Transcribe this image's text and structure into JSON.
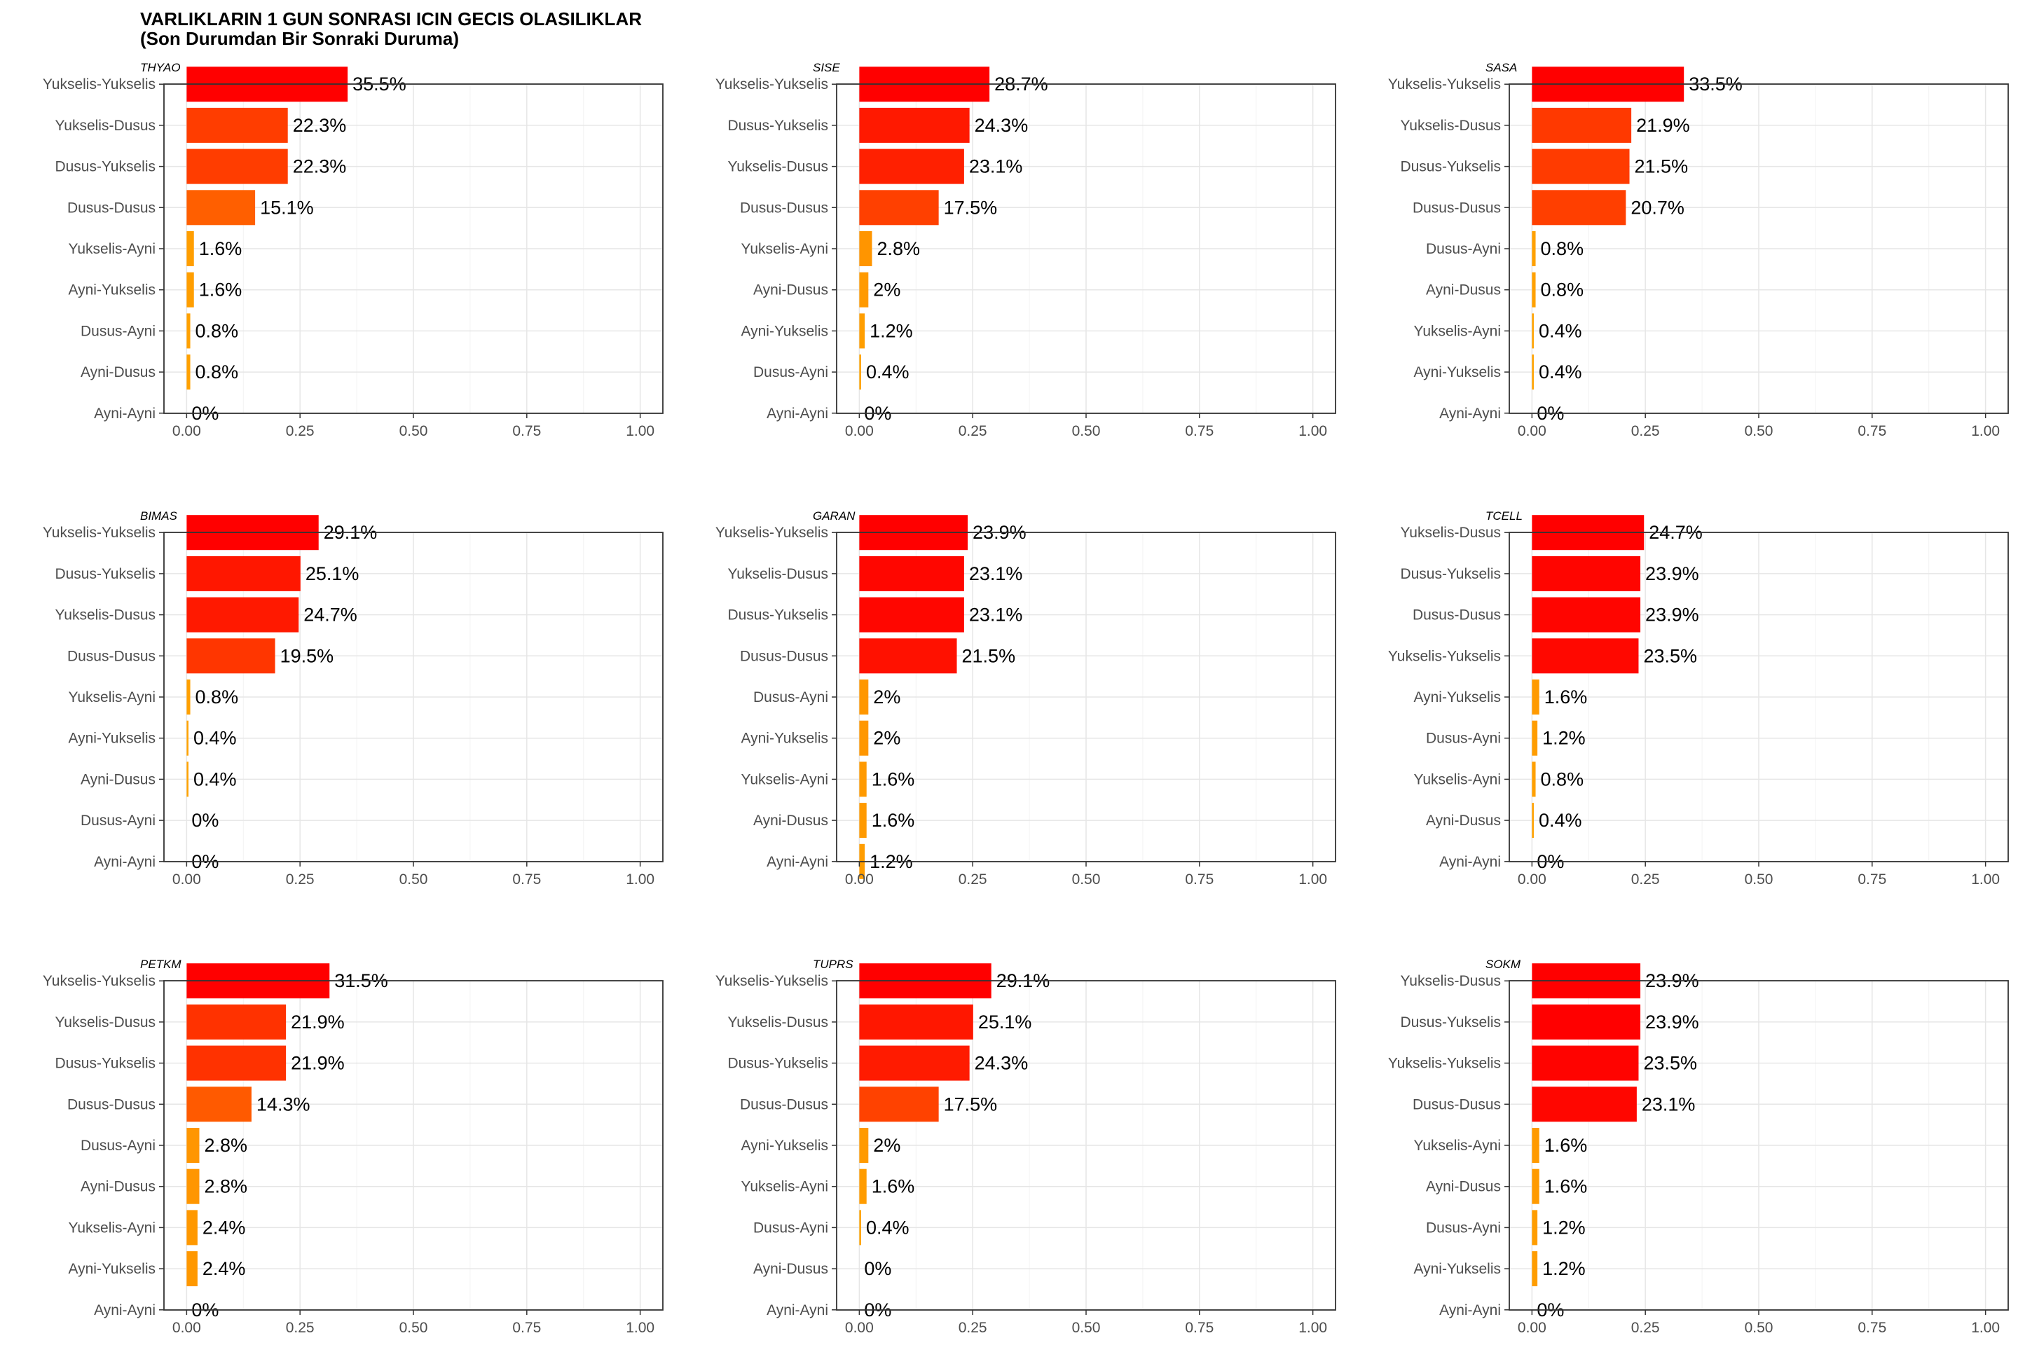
{
  "title": "VARLIKLARIN 1 GUN SONRASI ICIN GECIS OLASILIKLAR",
  "subtitle": "(Son Durumdan Bir Sonraki Duruma)",
  "chart_data": [
    {
      "type": "bar",
      "orientation": "horizontal",
      "title": "THYAO",
      "categories": [
        "Yukselis-Yukselis",
        "Yukselis-Dusus",
        "Dusus-Yukselis",
        "Dusus-Dusus",
        "Yukselis-Ayni",
        "Ayni-Yukselis",
        "Dusus-Ayni",
        "Ayni-Dusus",
        "Ayni-Ayni"
      ],
      "values": [
        0.355,
        0.223,
        0.223,
        0.151,
        0.016,
        0.016,
        0.008,
        0.008,
        0.0
      ],
      "labels": [
        "35.5%",
        "22.3%",
        "22.3%",
        "15.1%",
        "1.6%",
        "1.6%",
        "0.8%",
        "0.8%",
        "0%"
      ],
      "xlim": [
        0,
        1
      ],
      "x_ticks": [
        "0.00",
        "0.25",
        "0.50",
        "0.75",
        "1.00"
      ],
      "grid": true,
      "color_scale": [
        "#FFA500",
        "#FF0000"
      ]
    },
    {
      "type": "bar",
      "orientation": "horizontal",
      "title": "SISE",
      "categories": [
        "Yukselis-Yukselis",
        "Dusus-Yukselis",
        "Yukselis-Dusus",
        "Dusus-Dusus",
        "Yukselis-Ayni",
        "Ayni-Dusus",
        "Ayni-Yukselis",
        "Dusus-Ayni",
        "Ayni-Ayni"
      ],
      "values": [
        0.287,
        0.243,
        0.231,
        0.175,
        0.028,
        0.02,
        0.012,
        0.004,
        0.0
      ],
      "labels": [
        "28.7%",
        "24.3%",
        "23.1%",
        "17.5%",
        "2.8%",
        "2%",
        "1.2%",
        "0.4%",
        "0%"
      ],
      "xlim": [
        0,
        1
      ],
      "x_ticks": [
        "0.00",
        "0.25",
        "0.50",
        "0.75",
        "1.00"
      ],
      "grid": true,
      "color_scale": [
        "#FFA500",
        "#FF0000"
      ]
    },
    {
      "type": "bar",
      "orientation": "horizontal",
      "title": "SASA",
      "categories": [
        "Yukselis-Yukselis",
        "Yukselis-Dusus",
        "Dusus-Yukselis",
        "Dusus-Dusus",
        "Dusus-Ayni",
        "Ayni-Dusus",
        "Yukselis-Ayni",
        "Ayni-Yukselis",
        "Ayni-Ayni"
      ],
      "values": [
        0.335,
        0.219,
        0.215,
        0.207,
        0.008,
        0.008,
        0.004,
        0.004,
        0.0
      ],
      "labels": [
        "33.5%",
        "21.9%",
        "21.5%",
        "20.7%",
        "0.8%",
        "0.8%",
        "0.4%",
        "0.4%",
        "0%"
      ],
      "xlim": [
        0,
        1
      ],
      "x_ticks": [
        "0.00",
        "0.25",
        "0.50",
        "0.75",
        "1.00"
      ],
      "grid": true,
      "color_scale": [
        "#FFA500",
        "#FF0000"
      ]
    },
    {
      "type": "bar",
      "orientation": "horizontal",
      "title": "BIMAS",
      "categories": [
        "Yukselis-Yukselis",
        "Dusus-Yukselis",
        "Yukselis-Dusus",
        "Dusus-Dusus",
        "Yukselis-Ayni",
        "Ayni-Yukselis",
        "Ayni-Dusus",
        "Dusus-Ayni",
        "Ayni-Ayni"
      ],
      "values": [
        0.291,
        0.251,
        0.247,
        0.195,
        0.008,
        0.004,
        0.004,
        0.0,
        0.0
      ],
      "labels": [
        "29.1%",
        "25.1%",
        "24.7%",
        "19.5%",
        "0.8%",
        "0.4%",
        "0.4%",
        "0%",
        "0%"
      ],
      "xlim": [
        0,
        1
      ],
      "x_ticks": [
        "0.00",
        "0.25",
        "0.50",
        "0.75",
        "1.00"
      ],
      "grid": true,
      "color_scale": [
        "#FFA500",
        "#FF0000"
      ]
    },
    {
      "type": "bar",
      "orientation": "horizontal",
      "title": "GARAN",
      "categories": [
        "Yukselis-Yukselis",
        "Yukselis-Dusus",
        "Dusus-Yukselis",
        "Dusus-Dusus",
        "Dusus-Ayni",
        "Ayni-Yukselis",
        "Yukselis-Ayni",
        "Ayni-Dusus",
        "Ayni-Ayni"
      ],
      "values": [
        0.239,
        0.231,
        0.231,
        0.215,
        0.02,
        0.02,
        0.016,
        0.016,
        0.012
      ],
      "labels": [
        "23.9%",
        "23.1%",
        "23.1%",
        "21.5%",
        "2%",
        "2%",
        "1.6%",
        "1.6%",
        "1.2%"
      ],
      "xlim": [
        0,
        1
      ],
      "x_ticks": [
        "0.00",
        "0.25",
        "0.50",
        "0.75",
        "1.00"
      ],
      "grid": true,
      "color_scale": [
        "#FFA500",
        "#FF0000"
      ]
    },
    {
      "type": "bar",
      "orientation": "horizontal",
      "title": "TCELL",
      "categories": [
        "Yukselis-Dusus",
        "Dusus-Yukselis",
        "Dusus-Dusus",
        "Yukselis-Yukselis",
        "Ayni-Yukselis",
        "Dusus-Ayni",
        "Yukselis-Ayni",
        "Ayni-Dusus",
        "Ayni-Ayni"
      ],
      "values": [
        0.247,
        0.239,
        0.239,
        0.235,
        0.016,
        0.012,
        0.008,
        0.004,
        0.0
      ],
      "labels": [
        "24.7%",
        "23.9%",
        "23.9%",
        "23.5%",
        "1.6%",
        "1.2%",
        "0.8%",
        "0.4%",
        "0%"
      ],
      "xlim": [
        0,
        1
      ],
      "x_ticks": [
        "0.00",
        "0.25",
        "0.50",
        "0.75",
        "1.00"
      ],
      "grid": true,
      "color_scale": [
        "#FFA500",
        "#FF0000"
      ]
    },
    {
      "type": "bar",
      "orientation": "horizontal",
      "title": "PETKM",
      "categories": [
        "Yukselis-Yukselis",
        "Yukselis-Dusus",
        "Dusus-Yukselis",
        "Dusus-Dusus",
        "Dusus-Ayni",
        "Ayni-Dusus",
        "Yukselis-Ayni",
        "Ayni-Yukselis",
        "Ayni-Ayni"
      ],
      "values": [
        0.315,
        0.219,
        0.219,
        0.143,
        0.028,
        0.028,
        0.024,
        0.024,
        0.0
      ],
      "labels": [
        "31.5%",
        "21.9%",
        "21.9%",
        "14.3%",
        "2.8%",
        "2.8%",
        "2.4%",
        "2.4%",
        "0%"
      ],
      "xlim": [
        0,
        1
      ],
      "x_ticks": [
        "0.00",
        "0.25",
        "0.50",
        "0.75",
        "1.00"
      ],
      "grid": true,
      "color_scale": [
        "#FFA500",
        "#FF0000"
      ]
    },
    {
      "type": "bar",
      "orientation": "horizontal",
      "title": "TUPRS",
      "categories": [
        "Yukselis-Yukselis",
        "Yukselis-Dusus",
        "Dusus-Yukselis",
        "Dusus-Dusus",
        "Ayni-Yukselis",
        "Yukselis-Ayni",
        "Dusus-Ayni",
        "Ayni-Dusus",
        "Ayni-Ayni"
      ],
      "values": [
        0.291,
        0.251,
        0.243,
        0.175,
        0.02,
        0.016,
        0.004,
        0.0,
        0.0
      ],
      "labels": [
        "29.1%",
        "25.1%",
        "24.3%",
        "17.5%",
        "2%",
        "1.6%",
        "0.4%",
        "0%",
        "0%"
      ],
      "xlim": [
        0,
        1
      ],
      "x_ticks": [
        "0.00",
        "0.25",
        "0.50",
        "0.75",
        "1.00"
      ],
      "grid": true,
      "color_scale": [
        "#FFA500",
        "#FF0000"
      ]
    },
    {
      "type": "bar",
      "orientation": "horizontal",
      "title": "SOKM",
      "categories": [
        "Yukselis-Dusus",
        "Dusus-Yukselis",
        "Yukselis-Yukselis",
        "Dusus-Dusus",
        "Yukselis-Ayni",
        "Ayni-Dusus",
        "Dusus-Ayni",
        "Ayni-Yukselis",
        "Ayni-Ayni"
      ],
      "values": [
        0.239,
        0.239,
        0.235,
        0.231,
        0.016,
        0.016,
        0.012,
        0.012,
        0.0
      ],
      "labels": [
        "23.9%",
        "23.9%",
        "23.5%",
        "23.1%",
        "1.6%",
        "1.6%",
        "1.2%",
        "1.2%",
        "0%"
      ],
      "xlim": [
        0,
        1
      ],
      "x_ticks": [
        "0.00",
        "0.25",
        "0.50",
        "0.75",
        "1.00"
      ],
      "grid": true,
      "color_scale": [
        "#FFA500",
        "#FF0000"
      ]
    }
  ]
}
